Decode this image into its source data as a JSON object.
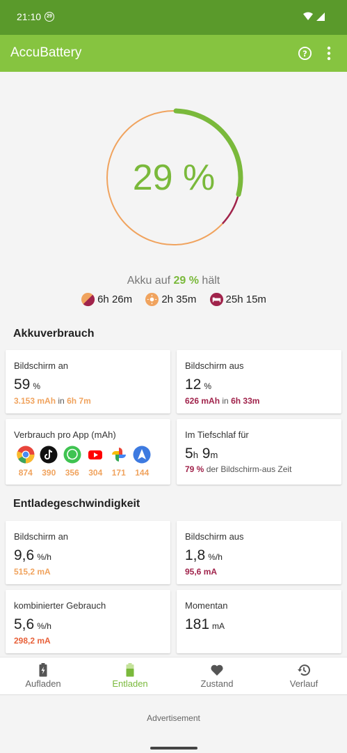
{
  "status": {
    "time": "21:10",
    "badge": "29"
  },
  "appbar": {
    "title": "AccuBattery",
    "help_icon": "help-circle-icon",
    "menu_icon": "more-vert-icon"
  },
  "gauge": {
    "percent_text": "29 %",
    "level": 0.29,
    "arc_color": "#7ab93b",
    "ring_color": "#f0a35e",
    "deep_color": "#a0234b"
  },
  "hold": {
    "prefix": "Akku auf",
    "value": "29 %",
    "suffix": "hält"
  },
  "estimates": [
    {
      "icon": "mixed-usage-icon",
      "text": "6h 26m"
    },
    {
      "icon": "screen-on-icon",
      "text": "2h 35m"
    },
    {
      "icon": "sleep-icon",
      "text": "25h 15m"
    }
  ],
  "usage": {
    "title": "Akkuverbrauch",
    "screen_on": {
      "label": "Bildschirm an",
      "value": "59",
      "unit": "%",
      "mah": "3.153 mAh",
      "mid": "in",
      "time": "6h 7m"
    },
    "screen_off": {
      "label": "Bildschirm aus",
      "value": "12",
      "unit": "%",
      "mah": "626 mAh",
      "mid": "in",
      "time": "6h 33m"
    },
    "per_app": {
      "label": "Verbrauch pro App (mAh)",
      "apps": [
        {
          "icon": "chrome-icon",
          "value": "874"
        },
        {
          "icon": "tiktok-icon",
          "value": "390"
        },
        {
          "icon": "whatsapp-icon",
          "value": "356"
        },
        {
          "icon": "youtube-icon",
          "value": "304"
        },
        {
          "icon": "photos-icon",
          "value": "171"
        },
        {
          "icon": "navigation-icon",
          "value": "144"
        }
      ]
    },
    "deep_sleep": {
      "label": "Im Tiefschlaf für",
      "hours": "5",
      "h": "h",
      "minutes": "9",
      "m": "m",
      "pct": "79 %",
      "rest": "der Bildschirm-aus Zeit"
    }
  },
  "discharge": {
    "title": "Entladegeschwindigkeit",
    "screen_on": {
      "label": "Bildschirm an",
      "value": "9,6",
      "unit": "%/h",
      "ma": "515,2 mA"
    },
    "screen_off": {
      "label": "Bildschirm aus",
      "value": "1,8",
      "unit": "%/h",
      "ma": "95,6 mA"
    },
    "combined": {
      "label": "kombinierter Gebrauch",
      "value": "5,6",
      "unit": "%/h",
      "ma": "298,2 mA"
    },
    "current": {
      "label": "Momentan",
      "value": "181",
      "unit": "mA"
    }
  },
  "nav": [
    {
      "icon": "charging-icon",
      "label": "Aufladen"
    },
    {
      "icon": "discharging-icon",
      "label": "Entladen"
    },
    {
      "icon": "heart-icon",
      "label": "Zustand"
    },
    {
      "icon": "history-icon",
      "label": "Verlauf"
    }
  ],
  "ad": {
    "text": "Advertisement"
  }
}
